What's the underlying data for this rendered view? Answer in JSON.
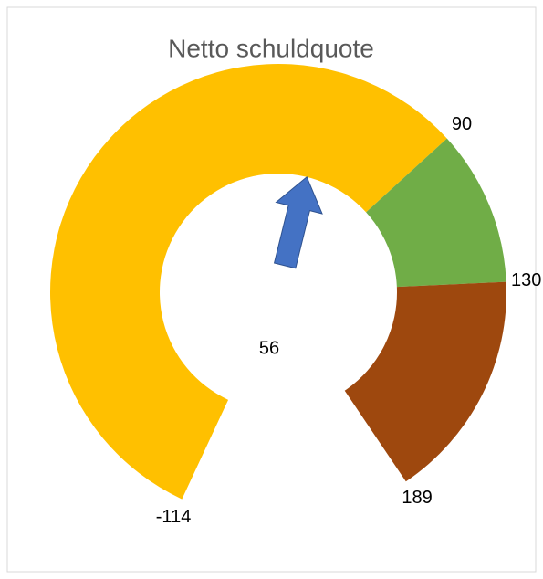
{
  "chart_data": {
    "type": "gauge",
    "title": "Netto schuldquote",
    "min": -114,
    "segments": [
      {
        "end": 90,
        "color": "#FFC000"
      },
      {
        "end": 130,
        "color": "#70AD47"
      },
      {
        "end": 189,
        "color": "#9E480E"
      }
    ],
    "needle": {
      "value": 56,
      "color": "#4472C4"
    }
  }
}
